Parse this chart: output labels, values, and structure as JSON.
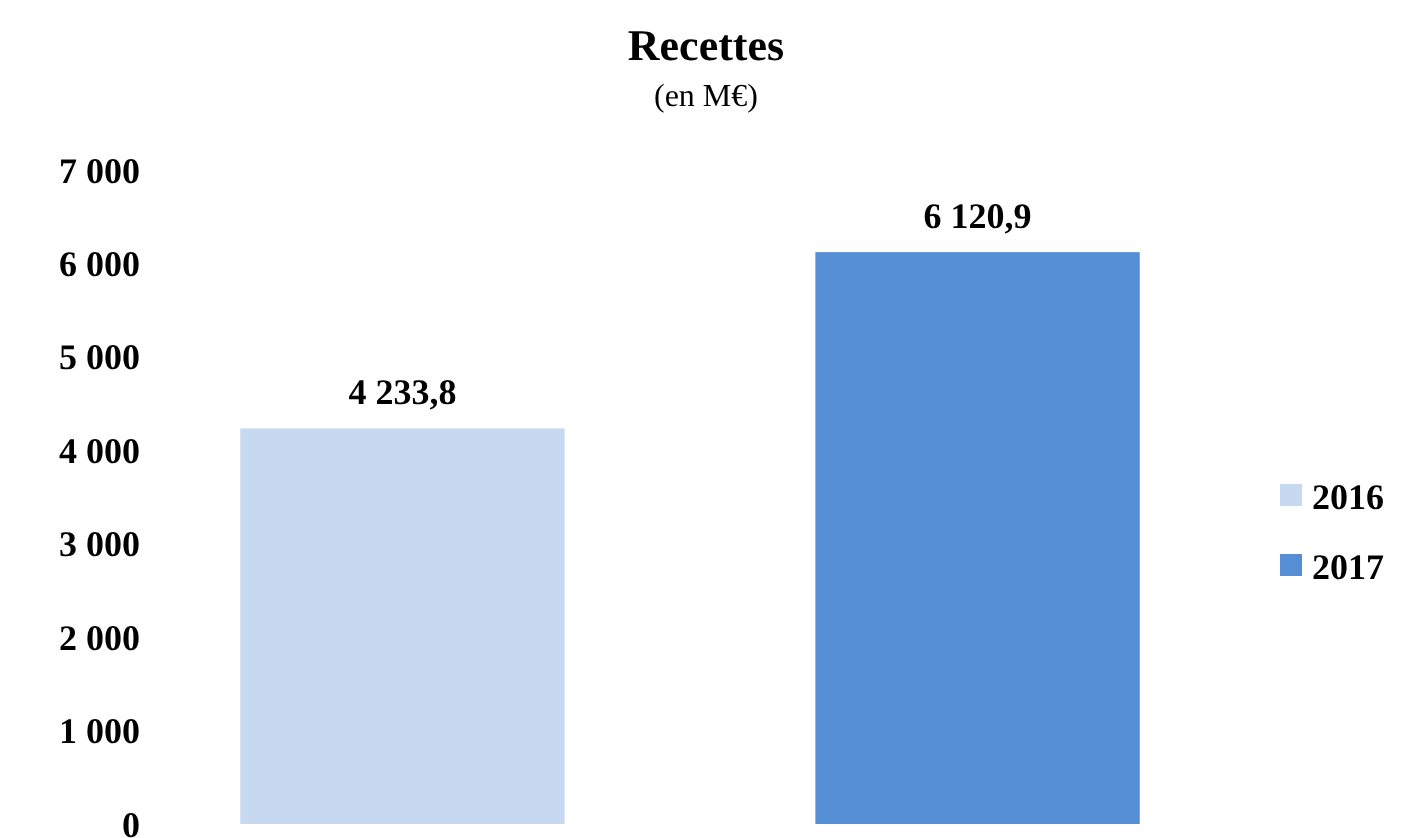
{
  "chart_data": {
    "type": "bar",
    "title": "Recettes",
    "subtitle": "(en M€)",
    "categories": [
      null
    ],
    "series": [
      {
        "name": "2016",
        "color": "#c6d9f1",
        "values": [
          4233.8
        ],
        "value_labels": [
          "4 233,8"
        ]
      },
      {
        "name": "2017",
        "color": "#558ed5",
        "values": [
          6120.9
        ],
        "value_labels": [
          "6 120,9"
        ]
      }
    ],
    "ylim": [
      0,
      7000
    ],
    "yticks": [
      {
        "value": 0,
        "label": "0"
      },
      {
        "value": 1000,
        "label": "1 000"
      },
      {
        "value": 2000,
        "label": "2 000"
      },
      {
        "value": 3000,
        "label": "3 000"
      },
      {
        "value": 4000,
        "label": "4 000"
      },
      {
        "value": 5000,
        "label": "5 000"
      },
      {
        "value": 6000,
        "label": "6 000"
      },
      {
        "value": 7000,
        "label": "7 000"
      }
    ],
    "grid": false,
    "legend": "right"
  }
}
